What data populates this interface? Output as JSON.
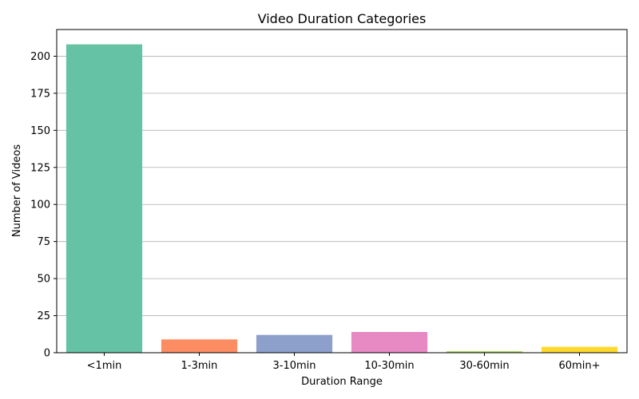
{
  "chart_data": {
    "type": "bar",
    "title": "Video Duration Categories",
    "xlabel": "Duration Range",
    "ylabel": "Number of Videos",
    "categories": [
      "<1min",
      "1-3min",
      "3-10min",
      "10-30min",
      "30-60min",
      "60min+"
    ],
    "values": [
      208,
      9,
      12,
      14,
      1,
      4
    ],
    "colors": [
      "#66c2a5",
      "#fc8d62",
      "#8da0cb",
      "#e78ac3",
      "#a6d854",
      "#ffd92f"
    ],
    "ylim": [
      0,
      218
    ],
    "yticks": [
      0,
      25,
      50,
      75,
      100,
      125,
      150,
      175,
      200
    ],
    "grid": "y",
    "legend": "none"
  }
}
